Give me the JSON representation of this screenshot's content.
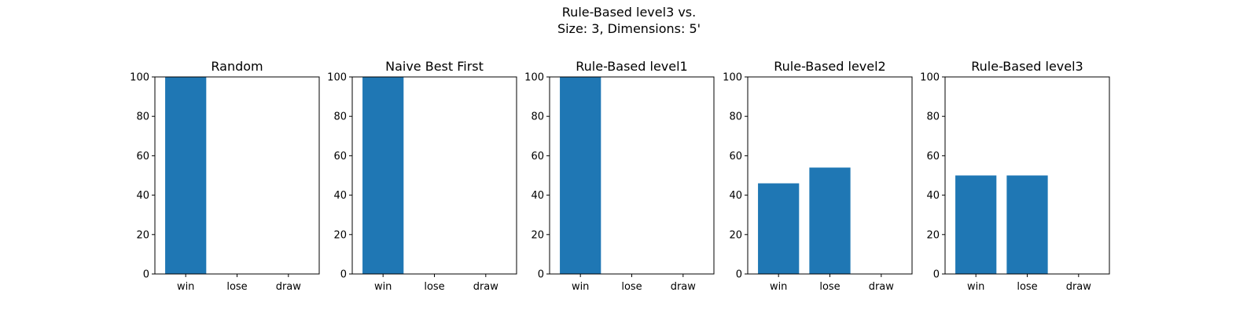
{
  "figure": {
    "title_line_1": "Rule-Based level3 vs.",
    "title_line_2": "Size: 3, Dimensions: 5'"
  },
  "chart_data": [
    {
      "type": "bar",
      "title": "Random",
      "categories": [
        "win",
        "lose",
        "draw"
      ],
      "values": [
        100,
        0,
        0
      ],
      "ylim": [
        0,
        100
      ],
      "yticks": [
        0,
        20,
        40,
        60,
        80,
        100
      ],
      "color": "#1f77b4"
    },
    {
      "type": "bar",
      "title": "Naive Best First",
      "categories": [
        "win",
        "lose",
        "draw"
      ],
      "values": [
        100,
        0,
        0
      ],
      "ylim": [
        0,
        100
      ],
      "yticks": [
        0,
        20,
        40,
        60,
        80,
        100
      ],
      "color": "#1f77b4"
    },
    {
      "type": "bar",
      "title": "Rule-Based level1",
      "categories": [
        "win",
        "lose",
        "draw"
      ],
      "values": [
        100,
        0,
        0
      ],
      "ylim": [
        0,
        100
      ],
      "yticks": [
        0,
        20,
        40,
        60,
        80,
        100
      ],
      "color": "#1f77b4"
    },
    {
      "type": "bar",
      "title": "Rule-Based level2",
      "categories": [
        "win",
        "lose",
        "draw"
      ],
      "values": [
        46,
        54,
        0
      ],
      "ylim": [
        0,
        100
      ],
      "yticks": [
        0,
        20,
        40,
        60,
        80,
        100
      ],
      "color": "#1f77b4"
    },
    {
      "type": "bar",
      "title": "Rule-Based level3",
      "categories": [
        "win",
        "lose",
        "draw"
      ],
      "values": [
        50,
        50,
        0
      ],
      "ylim": [
        0,
        100
      ],
      "yticks": [
        0,
        20,
        40,
        60,
        80,
        100
      ],
      "color": "#1f77b4"
    }
  ]
}
